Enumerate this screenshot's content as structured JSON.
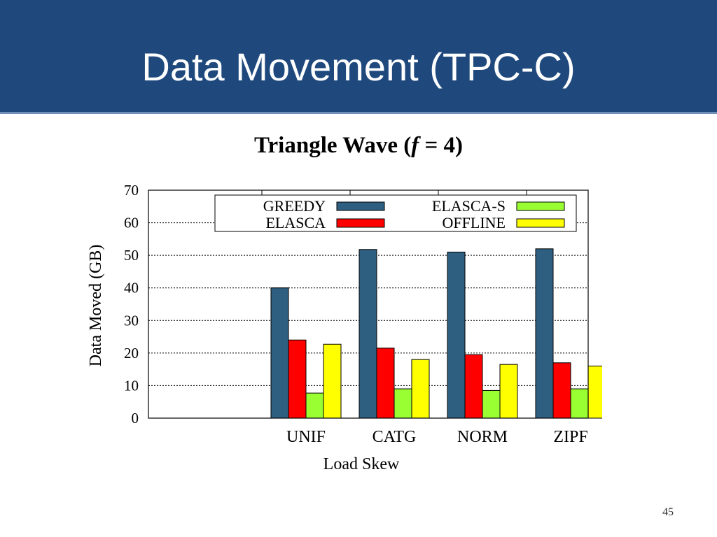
{
  "slide": {
    "title": "Data Movement (TPC-C)",
    "page_number": "45"
  },
  "chart_data": {
    "type": "bar",
    "title": "Triangle Wave (f = 4)",
    "title_parts": {
      "prefix": "Triangle Wave (",
      "italic": "f",
      "suffix": " = 4)"
    },
    "xlabel": "Load Skew",
    "ylabel": "Data Moved (GB)",
    "ylim": [
      0,
      70
    ],
    "yticks": [
      0,
      10,
      20,
      30,
      40,
      50,
      60,
      70
    ],
    "grid": true,
    "legend_position": "top",
    "categories": [
      "UNIF",
      "CATG",
      "NORM",
      "ZIPF"
    ],
    "series": [
      {
        "name": "GREEDY",
        "color": "#2f5f80",
        "values": [
          40,
          51.8,
          51,
          52
        ]
      },
      {
        "name": "ELASCA",
        "color": "#ff0000",
        "values": [
          24,
          21.5,
          19.5,
          17
        ]
      },
      {
        "name": "ELASCA-S",
        "color": "#99ff33",
        "values": [
          7.7,
          9,
          8.5,
          9
        ]
      },
      {
        "name": "OFFLINE",
        "color": "#ffff00",
        "values": [
          22.7,
          18,
          16.5,
          16
        ]
      }
    ]
  }
}
